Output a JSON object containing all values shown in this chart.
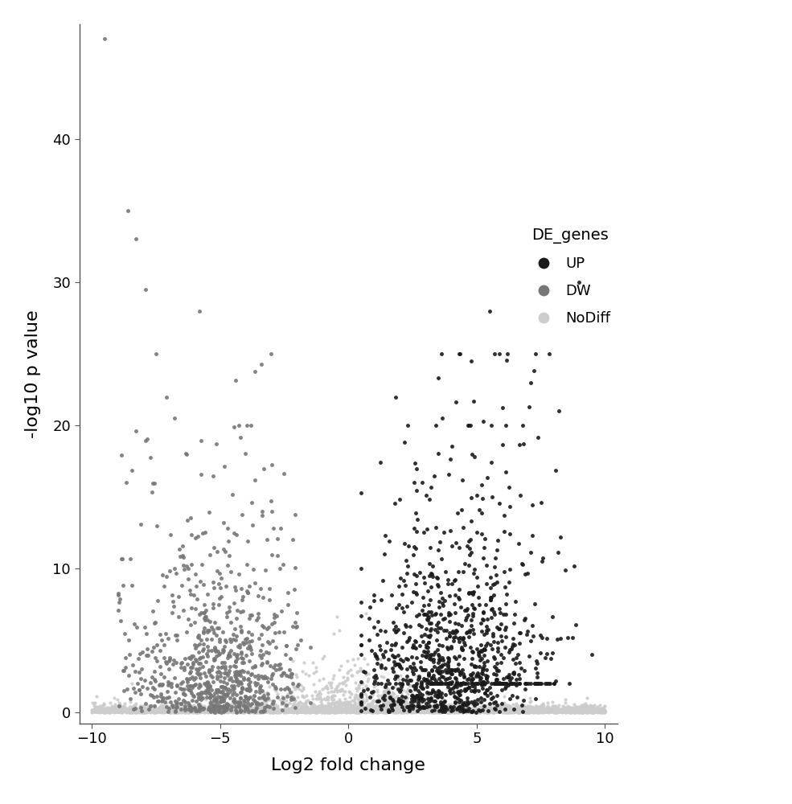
{
  "title": "",
  "xlabel": "Log2 fold change",
  "ylabel": "-log10 p value",
  "legend_title": "DE_genes",
  "legend_labels": [
    "UP",
    "DW",
    "NoDiff"
  ],
  "colors": {
    "UP": "#1a1a1a",
    "DW": "#777777",
    "NoDiff": "#cccccc"
  },
  "xlim": [
    -10.5,
    10.5
  ],
  "ylim": [
    -0.8,
    48
  ],
  "xticks": [
    -10,
    -5,
    0,
    5,
    10
  ],
  "yticks": [
    0,
    10,
    20,
    30,
    40
  ],
  "background_color": "#ffffff",
  "seed": 99,
  "point_size": 9,
  "alpha": 0.9
}
